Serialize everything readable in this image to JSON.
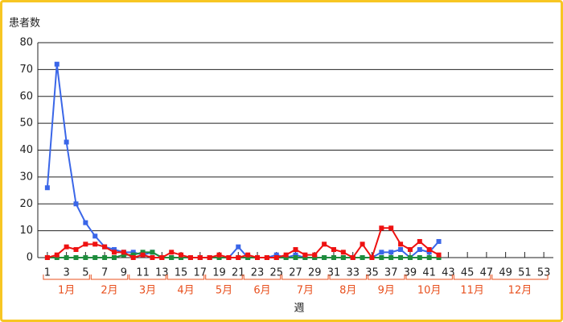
{
  "chart_data": {
    "type": "line",
    "y_label": "患者数",
    "x_label": "週",
    "x": [
      1,
      2,
      3,
      4,
      5,
      6,
      7,
      8,
      9,
      10,
      11,
      12,
      13,
      14,
      15,
      16,
      17,
      18,
      19,
      20,
      21,
      22,
      23,
      24,
      25,
      26,
      27,
      28,
      29,
      30,
      31,
      32,
      33,
      34,
      35,
      36,
      37,
      38,
      39,
      40,
      41,
      42
    ],
    "series": [
      {
        "color": "#3a66e8",
        "values": [
          26,
          72,
          43,
          20,
          13,
          8,
          4,
          3,
          2,
          2,
          1,
          2,
          0,
          0,
          0,
          0,
          0,
          0,
          0,
          0,
          4,
          0,
          0,
          0,
          1,
          0,
          1,
          0,
          0,
          0,
          0,
          0,
          0,
          0,
          0,
          2,
          2,
          3,
          0,
          3,
          2,
          6
        ]
      },
      {
        "color": "#1e8c3c",
        "values": [
          0,
          0,
          0,
          0,
          0,
          0,
          0,
          0,
          1,
          1,
          2,
          2,
          0,
          0,
          0,
          0,
          0,
          0,
          0,
          0,
          0,
          0,
          0,
          0,
          0,
          0,
          0,
          0,
          0,
          0,
          0,
          0,
          0,
          0,
          0,
          0,
          0,
          0,
          0,
          0,
          0,
          0
        ]
      },
      {
        "color": "#ee1111",
        "values": [
          0,
          1,
          4,
          3,
          5,
          5,
          4,
          2,
          2,
          0,
          1,
          0,
          0,
          2,
          1,
          0,
          0,
          0,
          1,
          0,
          0,
          1,
          0,
          0,
          0,
          1,
          3,
          1,
          1,
          5,
          3,
          2,
          0,
          5,
          0,
          11,
          11,
          5,
          3,
          6,
          3,
          1
        ]
      }
    ],
    "xlim": [
      0,
      54
    ],
    "xticks": [
      1,
      3,
      5,
      7,
      9,
      11,
      13,
      15,
      17,
      19,
      21,
      23,
      25,
      27,
      29,
      31,
      33,
      35,
      37,
      39,
      41,
      43,
      45,
      47,
      49,
      51,
      53
    ],
    "ylim": [
      0,
      80
    ],
    "yticks": [
      0,
      10,
      20,
      30,
      40,
      50,
      60,
      70,
      80
    ],
    "grid": true,
    "month_groups": [
      {
        "label": "1月",
        "first_week": 1,
        "last_week": 5
      },
      {
        "label": "2月",
        "first_week": 6,
        "last_week": 9
      },
      {
        "label": "3月",
        "first_week": 10,
        "last_week": 13
      },
      {
        "label": "4月",
        "first_week": 14,
        "last_week": 17
      },
      {
        "label": "5月",
        "first_week": 18,
        "last_week": 21
      },
      {
        "label": "6月",
        "first_week": 22,
        "last_week": 25
      },
      {
        "label": "7月",
        "first_week": 26,
        "last_week": 30
      },
      {
        "label": "8月",
        "first_week": 31,
        "last_week": 34
      },
      {
        "label": "9月",
        "first_week": 35,
        "last_week": 38
      },
      {
        "label": "10月",
        "first_week": 39,
        "last_week": 43
      },
      {
        "label": "11月",
        "first_week": 44,
        "last_week": 47
      },
      {
        "label": "12月",
        "first_week": 48,
        "last_week": 53
      }
    ]
  }
}
